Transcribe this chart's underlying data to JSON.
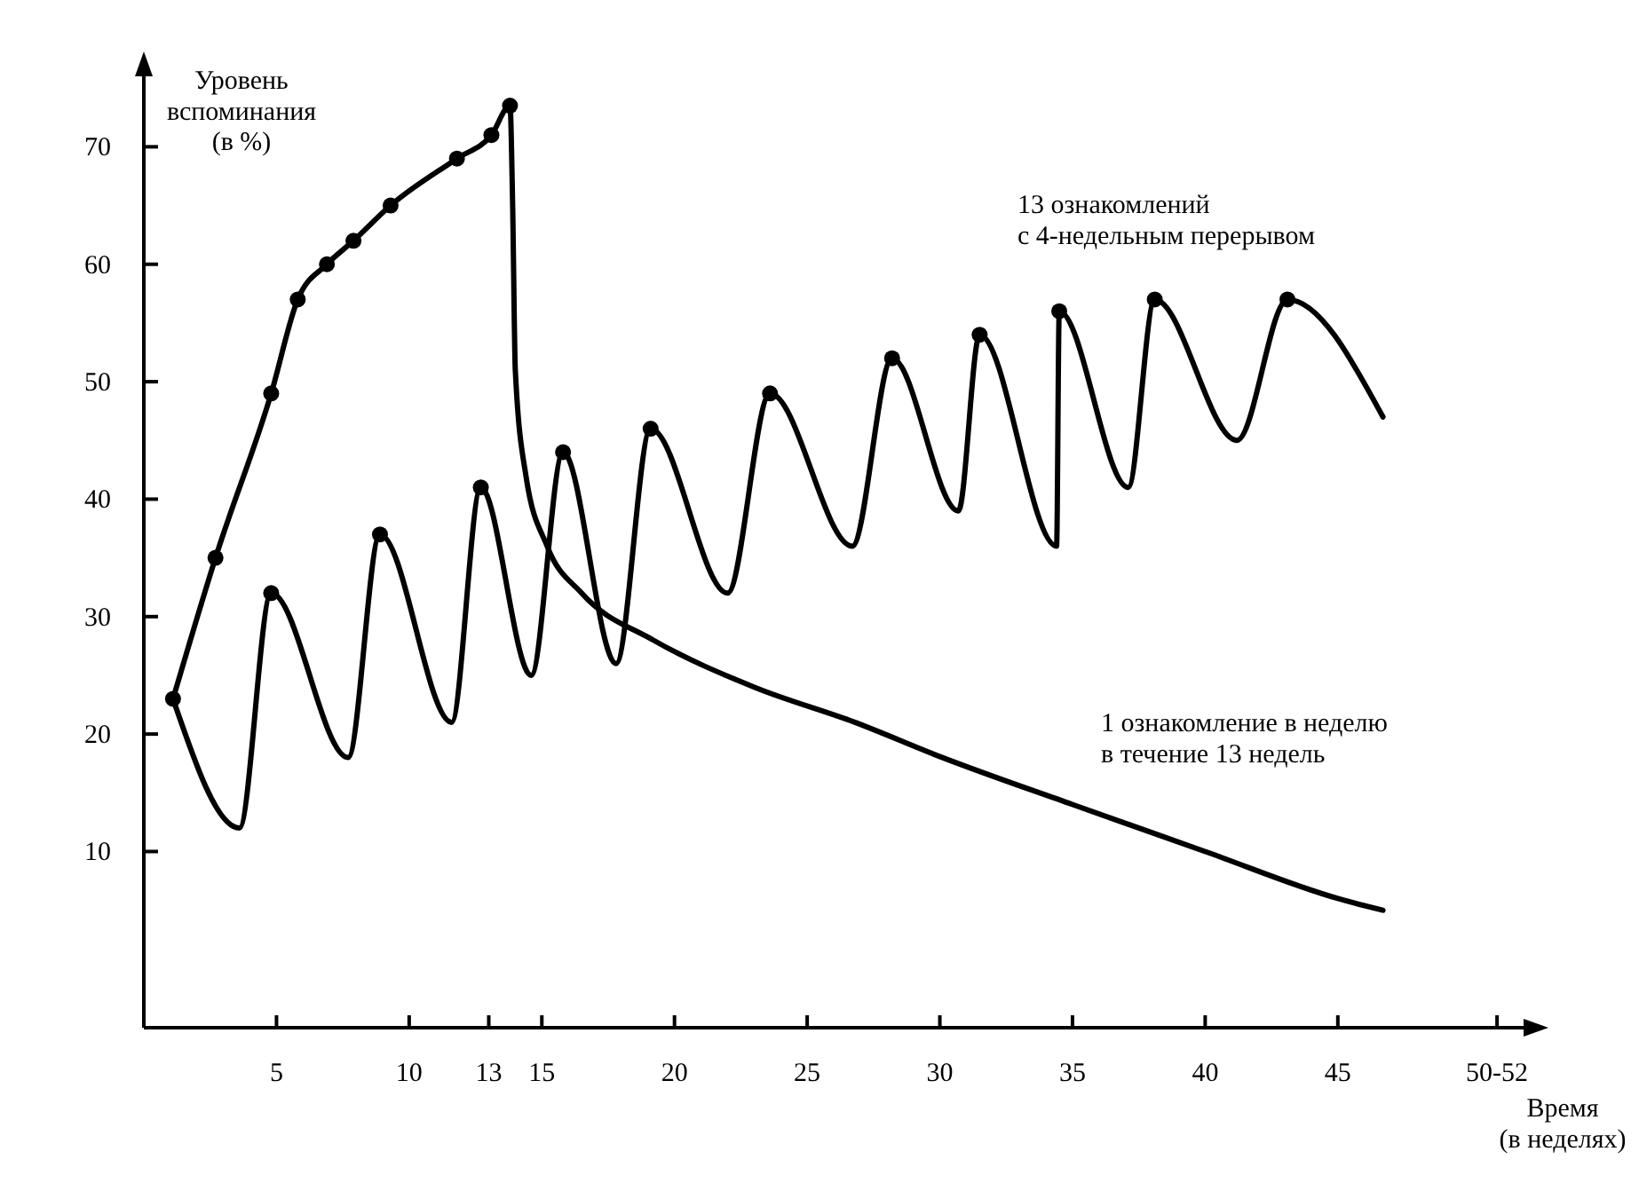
{
  "chart_data": {
    "type": "line",
    "ylabel": "Уровень\nвспоминания\n(в %)",
    "xlabel": "Время\n(в неделях)",
    "xlim": [
      0,
      52
    ],
    "ylim": [
      -5,
      76
    ],
    "xticks": [
      5,
      10,
      13,
      15,
      20,
      25,
      30,
      35,
      40,
      45,
      {
        "value": 51,
        "label": "50-52"
      }
    ],
    "yticks": [
      10,
      20,
      30,
      40,
      50,
      60,
      70
    ],
    "grid": false,
    "line_style": "solid",
    "series": [
      {
        "name": "1 ознакомление в неделю\nв течение 13 недель",
        "color": "#000000",
        "marker": "none",
        "x": [
          1.1,
          2.7,
          4.8,
          5.8,
          6.9,
          7.9,
          9.3,
          11.8,
          13.1,
          13.8,
          13.9,
          14.0,
          14.4,
          15.2,
          16.5,
          19.2,
          23.0,
          26.8,
          30.1,
          35,
          40,
          45,
          46.7
        ],
        "values": [
          23,
          35,
          49,
          57,
          60,
          62,
          65,
          69,
          71,
          73.5,
          65,
          51,
          42,
          36,
          32,
          28,
          24,
          21,
          18,
          14,
          10,
          6,
          5
        ]
      },
      {
        "name": "13 ознакомлений\nс 4-недельным перерывом",
        "color": "#000000",
        "marker": "none",
        "x": [
          1.1,
          3.6,
          4.8,
          7.7,
          8.9,
          11.6,
          12.7,
          14.6,
          15.8,
          17.8,
          19.1,
          22.0,
          23.6,
          26.7,
          28.2,
          30.7,
          31.5,
          34.4,
          34.5,
          37.1,
          38.1,
          41.2,
          43.1,
          46.7
        ],
        "values": [
          23,
          12,
          32,
          18,
          37,
          21,
          41,
          25,
          44,
          26,
          46,
          32,
          49,
          36,
          52,
          39,
          54,
          36,
          56,
          41,
          57,
          45,
          57,
          47
        ]
      },
      {
        "type": "scatter",
        "color": "#000000",
        "marker": "circle",
        "x": [
          1.1,
          2.7,
          4.8,
          5.8,
          6.9,
          7.9,
          9.3,
          11.8,
          13.1,
          13.8
        ],
        "values": [
          23,
          35,
          49,
          57,
          60,
          62,
          65,
          69,
          71,
          73.5
        ]
      },
      {
        "type": "scatter",
        "color": "#000000",
        "marker": "circle",
        "x": [
          4.8,
          8.9,
          12.7,
          15.8,
          19.1,
          23.6,
          28.2,
          31.5,
          34.5,
          38.1,
          43.1
        ],
        "values": [
          32,
          37,
          41,
          44,
          46,
          49,
          52,
          54,
          56,
          57,
          57
        ]
      }
    ]
  }
}
